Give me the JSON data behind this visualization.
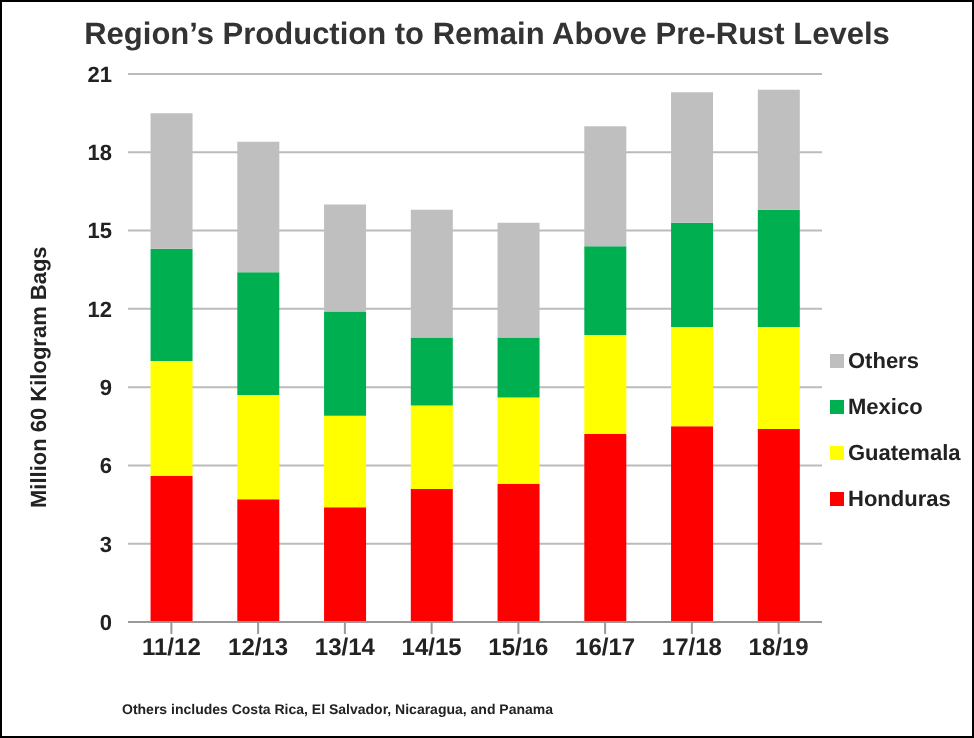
{
  "chart_data": {
    "type": "bar",
    "title": "Region’s Production to Remain Above Pre-Rust Levels",
    "ylabel": "Million 60 Kilogram Bags",
    "annotations": [
      "Others includes Costa Rica, El Salvador, Nicaragua, and Panama"
    ],
    "categories": [
      "11/12",
      "12/13",
      "13/14",
      "14/15",
      "15/16",
      "16/17",
      "17/18",
      "18/19"
    ],
    "stacked": true,
    "ylim": [
      0,
      21
    ],
    "yticks": [
      0,
      3,
      6,
      9,
      12,
      15,
      18,
      21
    ],
    "grid": "y",
    "legend": "right",
    "series": [
      {
        "name": "Honduras",
        "color": "#ff0000",
        "values": [
          5.6,
          4.7,
          4.4,
          5.1,
          5.3,
          7.2,
          7.5,
          7.4
        ]
      },
      {
        "name": "Guatemala",
        "color": "#ffff00",
        "values": [
          4.4,
          4.0,
          3.5,
          3.2,
          3.3,
          3.8,
          3.8,
          3.9
        ]
      },
      {
        "name": "Mexico",
        "color": "#00b050",
        "values": [
          4.3,
          4.7,
          4.0,
          2.6,
          2.3,
          3.4,
          4.0,
          4.5
        ]
      },
      {
        "name": "Others",
        "color": "#bfbfbf",
        "values": [
          5.2,
          5.0,
          4.1,
          4.9,
          4.4,
          4.6,
          5.0,
          4.6
        ]
      }
    ]
  }
}
